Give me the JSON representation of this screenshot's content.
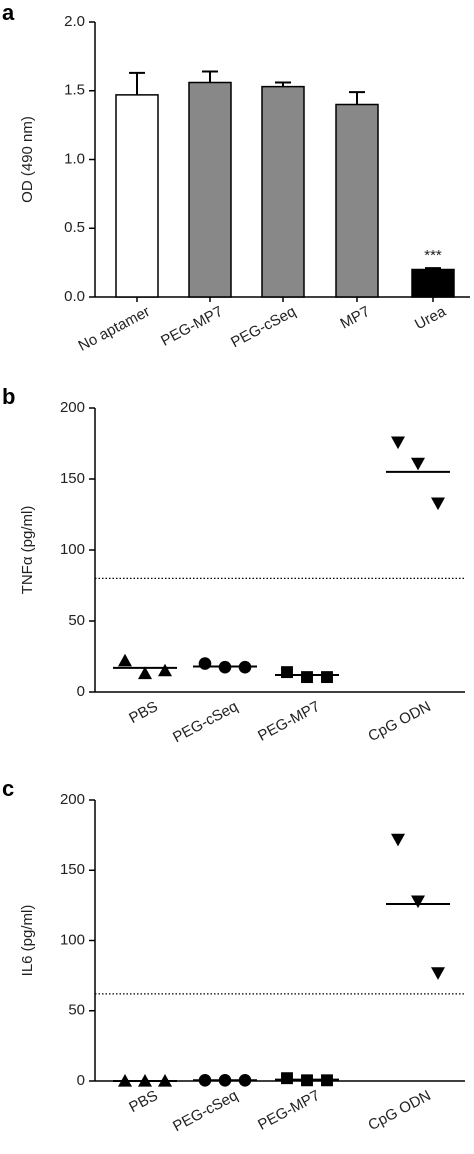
{
  "chart_data": [
    {
      "type": "bar",
      "label": "a",
      "ylabel": "OD (490 nm)",
      "categories": [
        "No aptamer",
        "PEG-MP7",
        "PEG-cSeq",
        "MP7",
        "Urea"
      ],
      "values": [
        1.47,
        1.56,
        1.53,
        1.4,
        0.2
      ],
      "errors": [
        0.16,
        0.08,
        0.03,
        0.09,
        0.01
      ],
      "colors": [
        "#ffffff",
        "#888888",
        "#888888",
        "#888888",
        "#000000"
      ],
      "annotations": [
        null,
        null,
        null,
        null,
        "***"
      ],
      "ylim": [
        0,
        2
      ],
      "yticks": [
        {
          "value": 0,
          "label": "0.0"
        },
        0.5,
        {
          "value": 1,
          "label": "1.0"
        },
        1.5,
        {
          "value": 2,
          "label": "2.0"
        }
      ]
    },
    {
      "type": "scatter",
      "label": "b",
      "ylabel": "TNFα (pg/ml)",
      "categories": [
        "PBS",
        "PEG-cSeq",
        "PEG-MP7",
        "CpG ODN"
      ],
      "groups": [
        {
          "marker": "triangle-up",
          "values": [
            22,
            13,
            15
          ]
        },
        {
          "marker": "circle",
          "values": [
            20,
            17.5,
            17.5
          ]
        },
        {
          "marker": "square",
          "values": [
            14,
            10.5,
            10.5
          ]
        },
        {
          "marker": "triangle-down",
          "values": [
            176,
            161,
            133
          ]
        }
      ],
      "means": [
        17,
        18,
        12,
        155
      ],
      "threshold": 80,
      "color": "#000000",
      "ylim": [
        0,
        200
      ],
      "yticks": [
        0,
        50,
        100,
        150,
        200
      ]
    },
    {
      "type": "scatter",
      "label": "c",
      "ylabel": "IL6 (pg/ml)",
      "categories": [
        "PBS",
        "PEG-cSeq",
        "PEG-MP7",
        "CpG ODN"
      ],
      "groups": [
        {
          "marker": "triangle-up",
          "values": [
            0,
            0,
            0
          ]
        },
        {
          "marker": "circle",
          "values": [
            0.5,
            0.5,
            0.5
          ]
        },
        {
          "marker": "square",
          "values": [
            2,
            0.5,
            0.5
          ]
        },
        {
          "marker": "triangle-down",
          "values": [
            172,
            128,
            77
          ]
        }
      ],
      "means": [
        0,
        0.5,
        1,
        126
      ],
      "threshold": 62,
      "color": "#000000",
      "ylim": [
        0,
        200
      ],
      "yticks": [
        0,
        50,
        100,
        150,
        200
      ]
    }
  ]
}
